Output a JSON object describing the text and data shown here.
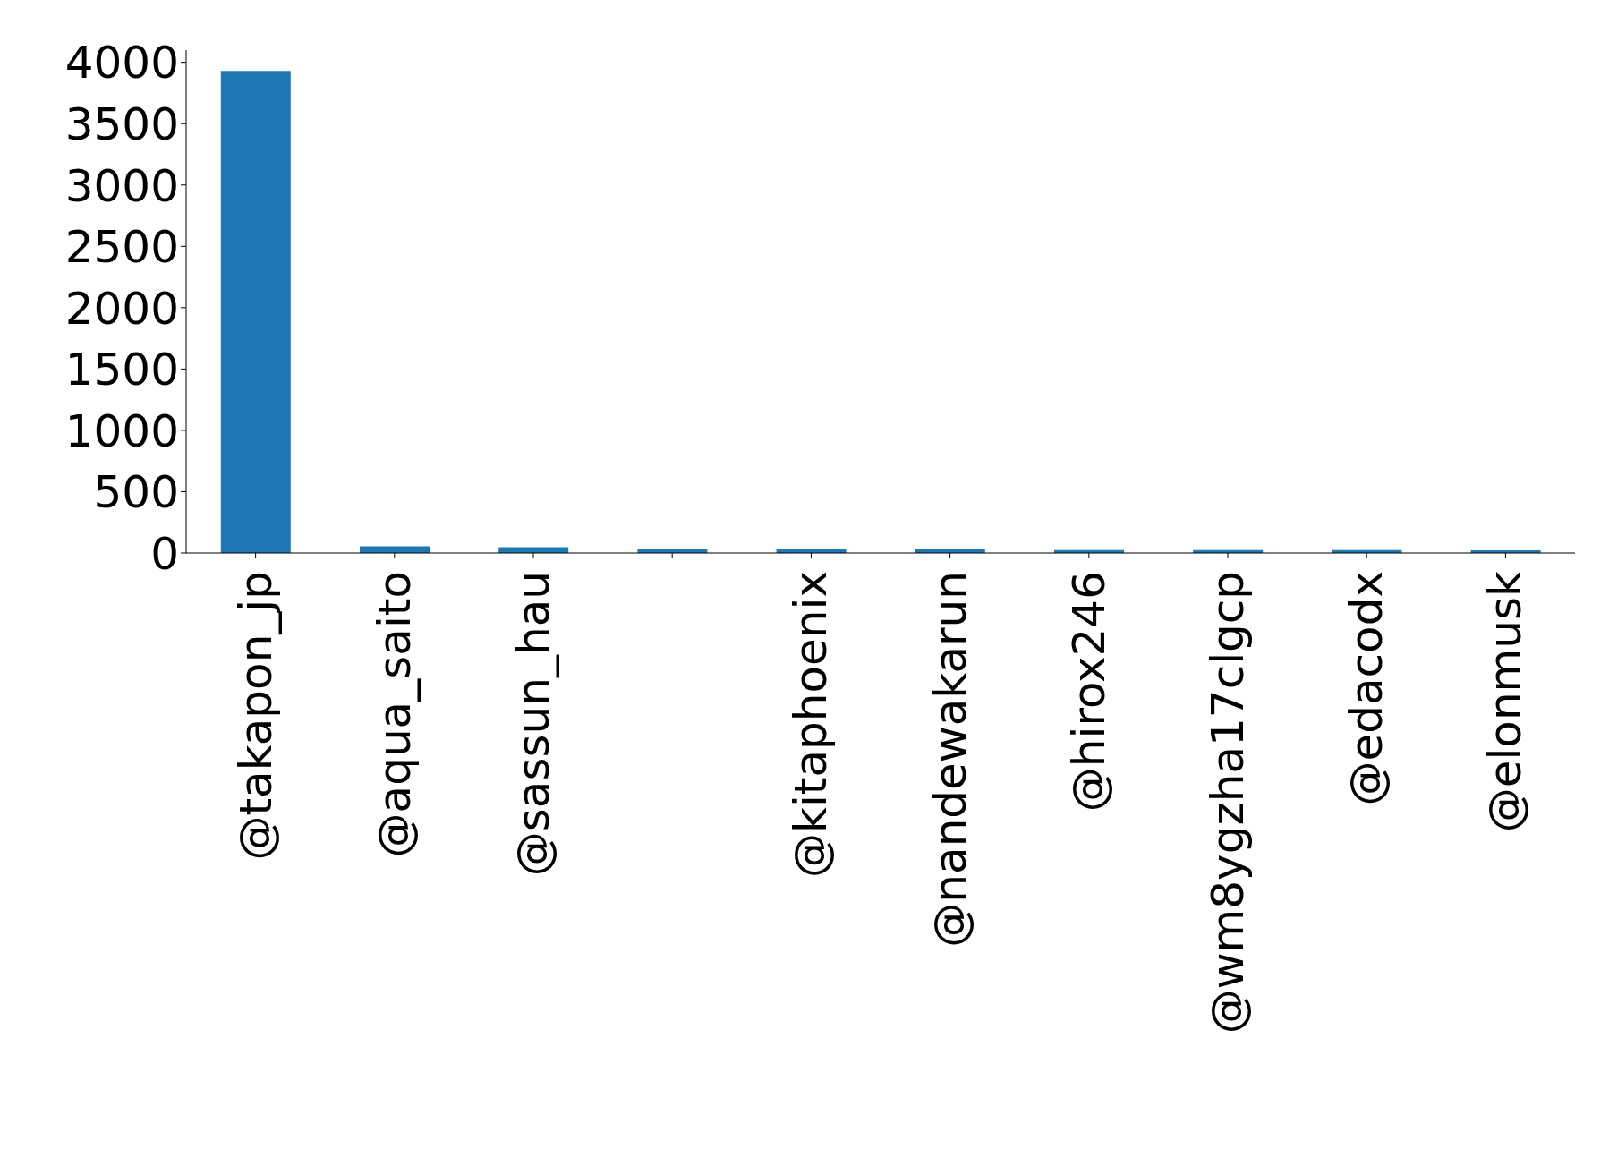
{
  "chart_data": {
    "type": "bar",
    "categories": [
      "@takapon_jp",
      "@aqua_saito",
      "@sassun_hau",
      null,
      "@kitaphoenix",
      "@nandewakarun",
      "@hirox246",
      "@wm8ygzha17clgcp",
      "@edacodx",
      "@elonmusk"
    ],
    "values": [
      3930,
      55,
      47,
      32,
      31,
      31,
      23,
      23,
      23,
      22
    ],
    "color": "#1f77b4",
    "ylim": [
      0,
      4100
    ],
    "yticks": [
      0,
      500,
      1000,
      1500,
      2000,
      2500,
      3000,
      3500,
      4000
    ],
    "grid": false
  }
}
